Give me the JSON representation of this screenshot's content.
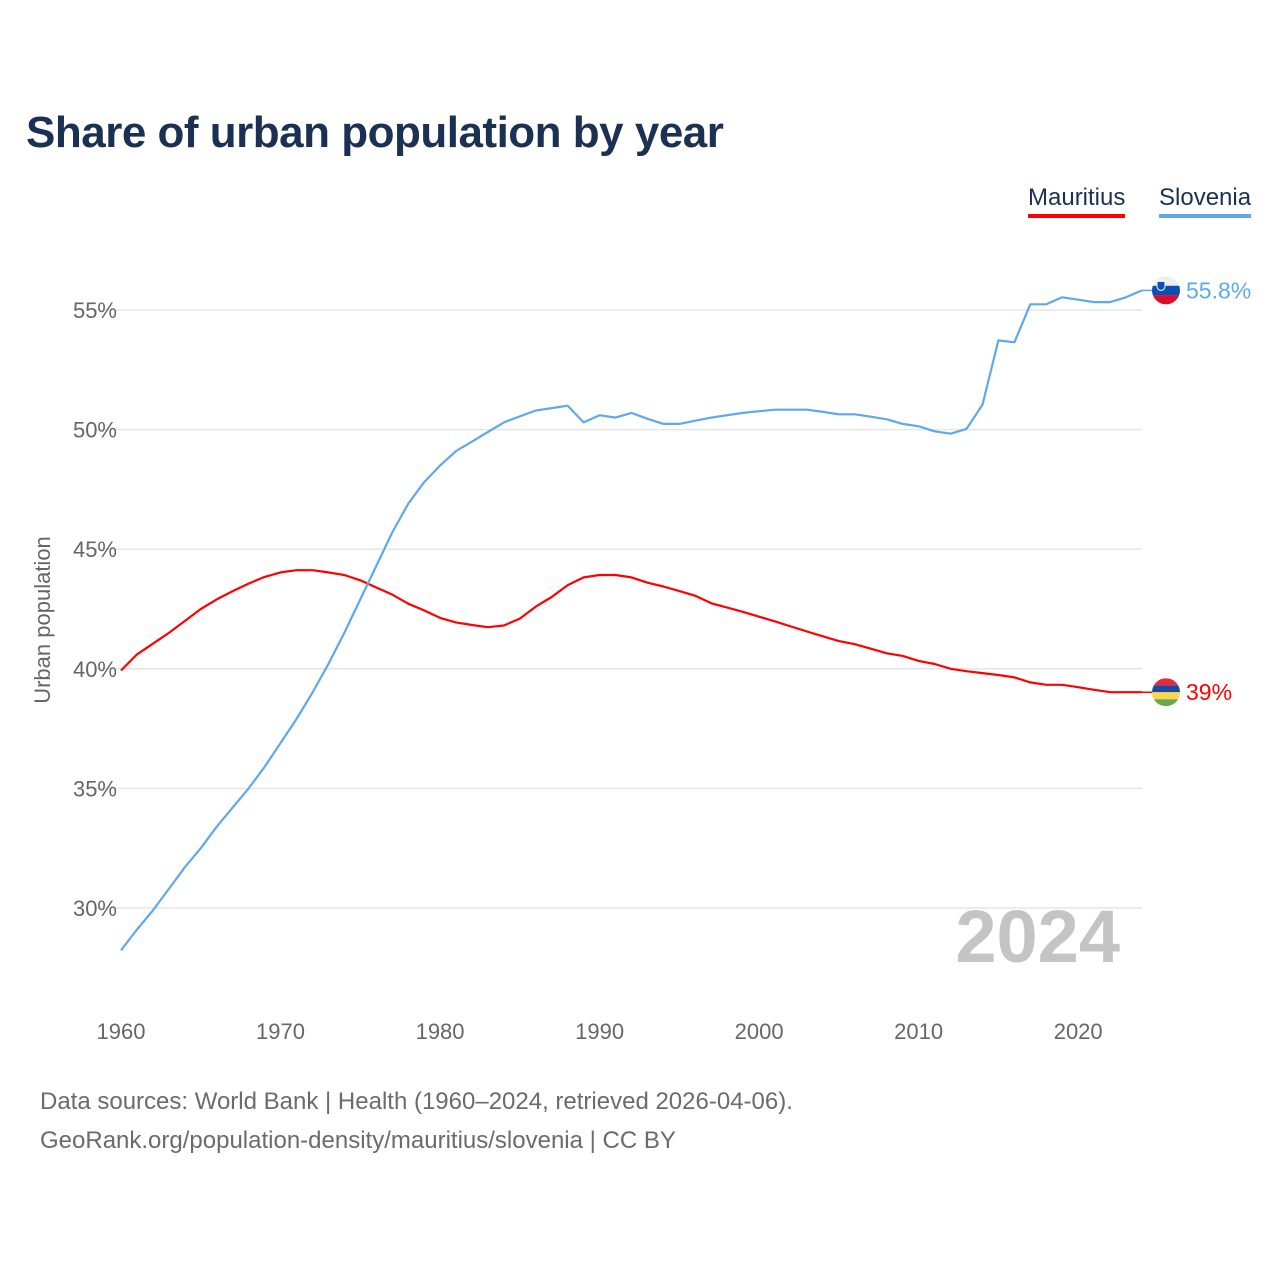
{
  "chart_data": {
    "type": "line",
    "title": "Share of urban population by year",
    "xlabel": "",
    "ylabel": "Urban population",
    "xlim": [
      1960,
      2024
    ],
    "ylim": [
      27,
      57
    ],
    "x_ticks": [
      "1960",
      "1970",
      "1980",
      "1990",
      "2000",
      "2010",
      "2020"
    ],
    "y_ticks": [
      {
        "v": 30,
        "label": "30%"
      },
      {
        "v": 35,
        "label": "35%"
      },
      {
        "v": 40,
        "label": "40%"
      },
      {
        "v": 45,
        "label": "45%"
      },
      {
        "v": 50,
        "label": "50%"
      },
      {
        "v": 55,
        "label": "55%"
      }
    ],
    "grid": true,
    "legend_position": "top-right",
    "year_watermark": "2024",
    "x": [
      1960,
      1961,
      1962,
      1963,
      1964,
      1965,
      1966,
      1967,
      1968,
      1969,
      1970,
      1971,
      1972,
      1973,
      1974,
      1975,
      1976,
      1977,
      1978,
      1979,
      1980,
      1981,
      1982,
      1983,
      1984,
      1985,
      1986,
      1987,
      1988,
      1989,
      1990,
      1991,
      1992,
      1993,
      1994,
      1995,
      1996,
      1997,
      1998,
      1999,
      2000,
      2001,
      2002,
      2003,
      2004,
      2005,
      2006,
      2007,
      2008,
      2009,
      2010,
      2011,
      2012,
      2013,
      2014,
      2015,
      2016,
      2017,
      2018,
      2019,
      2020,
      2021,
      2022,
      2023,
      2024
    ],
    "series": [
      {
        "name": "Mauritius",
        "color": "#ff0000",
        "end_label": "39%",
        "values": [
          39.93,
          40.6,
          41.05,
          41.5,
          42.0,
          42.5,
          42.9,
          43.25,
          43.56,
          43.84,
          44.03,
          44.12,
          44.12,
          44.03,
          43.92,
          43.7,
          43.4,
          43.1,
          42.72,
          42.44,
          42.13,
          41.94,
          41.83,
          41.74,
          41.81,
          42.1,
          42.6,
          43.0,
          43.5,
          43.82,
          43.92,
          43.92,
          43.82,
          43.6,
          43.44,
          43.25,
          43.05,
          42.74,
          42.56,
          42.38,
          42.18,
          41.98,
          41.77,
          41.56,
          41.36,
          41.16,
          41.03,
          40.84,
          40.65,
          40.54,
          40.33,
          40.2,
          40.0,
          39.9,
          39.82,
          39.74,
          39.64,
          39.43,
          39.33,
          39.33,
          39.23,
          39.12,
          39.02,
          39.02,
          39.02
        ]
      },
      {
        "name": "Slovenia",
        "color": "#5ea8ec",
        "end_label": "55.8%",
        "values": [
          28.23,
          29.1,
          29.9,
          30.8,
          31.7,
          32.5,
          33.4,
          34.2,
          35.0,
          35.9,
          36.9,
          37.9,
          39.0,
          40.2,
          41.5,
          42.9,
          44.3,
          45.7,
          46.9,
          47.8,
          48.5,
          49.1,
          49.5,
          49.9,
          50.3,
          50.55,
          50.8,
          50.9,
          51.0,
          50.3,
          50.6,
          50.5,
          50.7,
          50.45,
          50.24,
          50.24,
          50.37,
          50.5,
          50.6,
          50.7,
          50.77,
          50.83,
          50.83,
          50.83,
          50.74,
          50.64,
          50.64,
          50.54,
          50.43,
          50.24,
          50.14,
          49.93,
          49.83,
          50.03,
          51.04,
          53.73,
          53.65,
          55.24,
          55.24,
          55.53,
          55.43,
          55.33,
          55.33,
          55.53,
          55.82
        ]
      }
    ]
  },
  "footer": {
    "line1": "Data sources: World Bank | Health (1960–2024, retrieved 2026-04-06).",
    "line2": "GeoRank.org/population-density/mauritius/slovenia | CC BY"
  }
}
